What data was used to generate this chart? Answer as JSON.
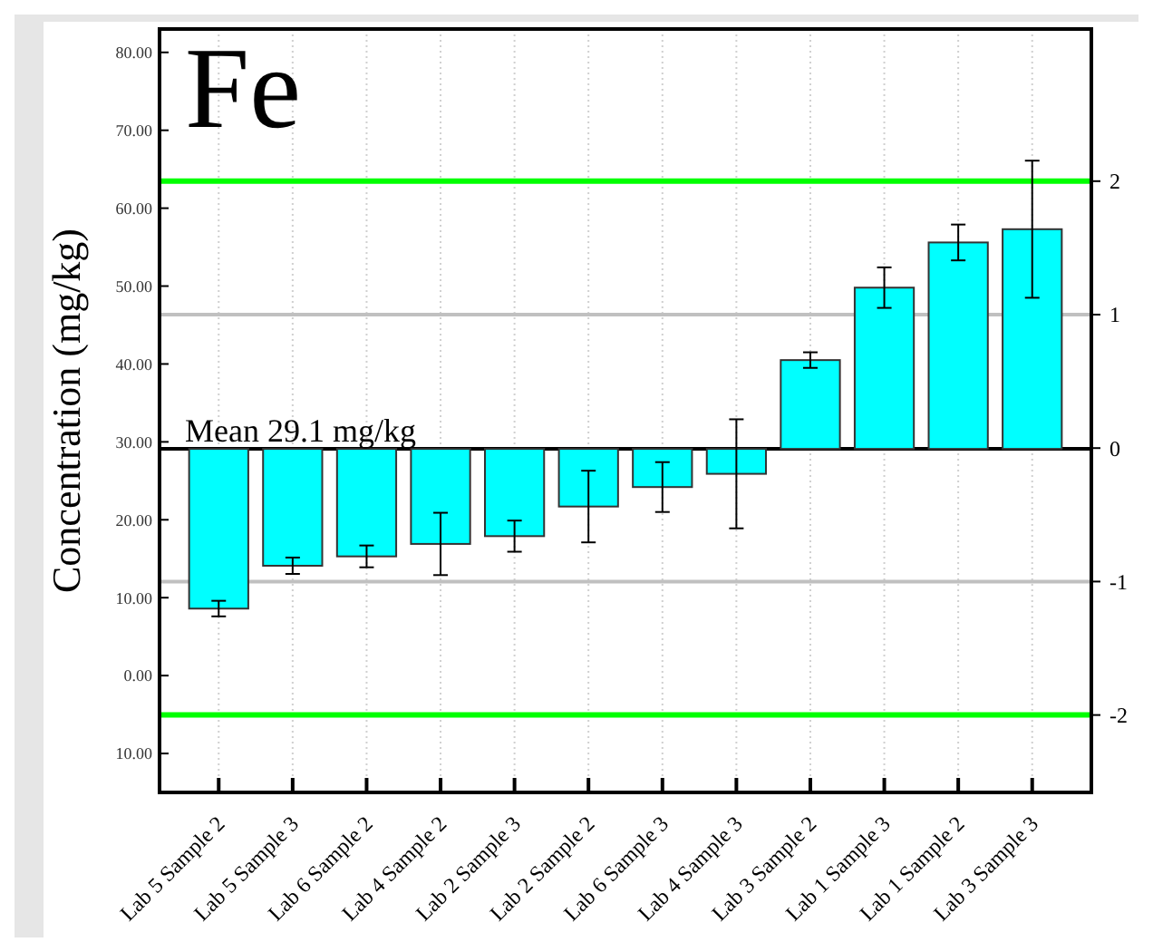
{
  "chart_data": {
    "type": "bar",
    "title": "Fe",
    "ylabel": "Concentration (mg/kg)",
    "categories": [
      "Lab 5 Sample 2",
      "Lab 5 Sample 3",
      "Lab 6 Sample 2",
      "Lab 4 Sample 2",
      "Lab 2 Sample 3",
      "Lab 2 Sample 2",
      "Lab 6 Sample 3",
      "Lab 4 Sample 3",
      "Lab 3 Sample 2",
      "Lab 1 Sample 3",
      "Lab 1 Sample 2",
      "Lab 3 Sample 3"
    ],
    "base": [
      29.1,
      29.1,
      29.1,
      29.1,
      29.1,
      29.1,
      29.1,
      29.1,
      29.1,
      29.1,
      29.1,
      29.1
    ],
    "values": [
      -20.5,
      -15.0,
      -13.8,
      -12.2,
      -11.2,
      -7.4,
      -4.9,
      -3.2,
      11.4,
      20.7,
      26.5,
      28.2
    ],
    "errors": [
      1.0,
      1.05,
      1.4,
      4.0,
      2.0,
      4.6,
      3.2,
      7.0,
      1.0,
      2.6,
      2.3,
      8.8
    ],
    "color": "#00ffff",
    "ylim": [
      -15,
      83
    ],
    "yticks": [
      {
        "value": -10,
        "label": "10.00"
      },
      {
        "value": 0,
        "label": "0.00"
      },
      {
        "value": 10,
        "label": "10.00"
      },
      {
        "value": 20,
        "label": "20.00"
      },
      {
        "value": 30,
        "label": "30.00"
      },
      {
        "value": 40,
        "label": "40.00"
      },
      {
        "value": 50,
        "label": "50.00"
      },
      {
        "value": 60,
        "label": "60.00"
      },
      {
        "value": 70,
        "label": "70.00"
      },
      {
        "value": 80,
        "label": "80.00"
      }
    ],
    "y2lim": [
      -2.58,
      3.14
    ],
    "y2ticks": [
      -2,
      -1,
      0,
      1,
      2
    ],
    "ref_lines": [
      {
        "axis": "y",
        "value": 29.1,
        "label": "Mean 29.1 mg/kg",
        "color": "#000000"
      },
      {
        "axis": "y2",
        "value": 2,
        "label": null,
        "color": "#00ff00"
      },
      {
        "axis": "y2",
        "value": -2,
        "label": null,
        "color": "#00ff00"
      },
      {
        "axis": "y2",
        "value": 1,
        "label": null,
        "color": "#c0c0c0"
      },
      {
        "axis": "y2",
        "value": -1,
        "label": null,
        "color": "#c0c0c0"
      }
    ],
    "grid": "x"
  }
}
